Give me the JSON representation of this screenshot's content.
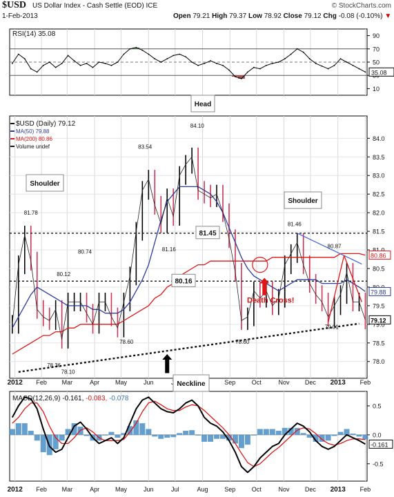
{
  "header": {
    "symbol": "$USD",
    "name": "US Dollar Index - Cash Settle (EOD) ICE",
    "brand": "© StockCharts.com",
    "date": "1-Feb-2013",
    "open_label": "Open",
    "open": "79.21",
    "high_label": "High",
    "high": "79.37",
    "low_label": "Low",
    "low": "78.92",
    "close_label": "Close",
    "close": "79.12",
    "chg_label": "Chg",
    "chg": "-0.08 (-0.10%)",
    "chg_marker": "▼",
    "colors": {
      "up": "#000000",
      "down": "#cc3355",
      "ma50": "#2a3a9e",
      "ma200": "#e01515"
    }
  },
  "rsi_panel": {
    "legend": "RSI(14) 35.08",
    "last_value_label": "35.08",
    "ticks": [
      "90",
      "70",
      "50",
      "30",
      "10"
    ],
    "tick_values": [
      90,
      70,
      50,
      30,
      10
    ],
    "ylim": [
      0,
      100
    ],
    "overbought": 70,
    "oversold": 30
  },
  "price_panel": {
    "legend": [
      "$USD (Daily) 79.12",
      "MA(50) 79.88",
      "MA(200) 80.86",
      "Volume undef"
    ],
    "y_ticks": [
      "84.0",
      "83.5",
      "83.0",
      "82.5",
      "82.0",
      "81.5",
      "81.0",
      "80.5",
      "80.0",
      "79.5",
      "79.0",
      "78.5",
      "78.0"
    ],
    "y_tick_values": [
      84.0,
      83.5,
      83.0,
      82.5,
      82.0,
      81.5,
      81.0,
      80.5,
      80.0,
      79.5,
      79.0,
      78.5,
      78.0
    ],
    "ylim": [
      77.55,
      84.6
    ],
    "ma200_label": "80.86",
    "ma50_label": "79.88",
    "close_label": "79.12",
    "price_labels": [
      "81.78",
      "78.36",
      "78.10",
      "80.12",
      "80.74",
      "78.60",
      "83.54",
      "81.16",
      "84.10",
      "78.60",
      "81.46",
      "80.87",
      "79.01"
    ],
    "level_labels": [
      "81.45",
      "80.16"
    ],
    "annotations": {
      "head": "Head",
      "shoulder_left": "Shoulder",
      "shoulder_right": "Shoulder",
      "neckline": "Neckline",
      "death_cross": "Death Cross!"
    }
  },
  "macd_panel": {
    "legend_prefix": "MACD(12,26,9)",
    "legend_macd": "-0.161,",
    "legend_signal": "-0.083,",
    "legend_hist": "-0.078",
    "ticks": [
      "0.5",
      "0.0",
      "-0.5"
    ],
    "tick_values": [
      0.5,
      0.0,
      -0.5
    ],
    "ylim": [
      -0.8,
      0.75
    ],
    "last_value_label": "-0.161"
  },
  "x_axis": {
    "labels": [
      "2012",
      "Feb",
      "Mar",
      "Apr",
      "May",
      "Jun",
      "Jul",
      "Aug",
      "Sep",
      "Oct",
      "Nov",
      "Dec",
      "2013",
      "Feb"
    ],
    "label_dates": [
      "2012-01-02",
      "2012-02-01",
      "2012-03-01",
      "2012-04-01",
      "2012-05-01",
      "2012-06-01",
      "2012-07-01",
      "2012-08-01",
      "2012-09-01",
      "2012-10-01",
      "2012-11-01",
      "2012-12-01",
      "2013-01-01",
      "2013-02-01"
    ]
  },
  "chart_data": [
    {
      "type": "line",
      "name": "RSI(14)",
      "ylim": [
        0,
        100
      ],
      "x": [
        "2011-12-30",
        "2012-01-06",
        "2012-01-13",
        "2012-01-20",
        "2012-01-27",
        "2012-02-03",
        "2012-02-10",
        "2012-02-17",
        "2012-02-24",
        "2012-03-02",
        "2012-03-09",
        "2012-03-16",
        "2012-03-23",
        "2012-03-30",
        "2012-04-06",
        "2012-04-13",
        "2012-04-20",
        "2012-04-27",
        "2012-05-04",
        "2012-05-11",
        "2012-05-18",
        "2012-05-25",
        "2012-06-01",
        "2012-06-08",
        "2012-06-15",
        "2012-06-22",
        "2012-06-29",
        "2012-07-06",
        "2012-07-13",
        "2012-07-20",
        "2012-07-27",
        "2012-08-03",
        "2012-08-10",
        "2012-08-17",
        "2012-08-24",
        "2012-08-31",
        "2012-09-07",
        "2012-09-14",
        "2012-09-21",
        "2012-09-28",
        "2012-10-05",
        "2012-10-12",
        "2012-10-19",
        "2012-10-26",
        "2012-11-02",
        "2012-11-09",
        "2012-11-16",
        "2012-11-23",
        "2012-11-30",
        "2012-12-07",
        "2012-12-14",
        "2012-12-21",
        "2012-12-28",
        "2013-01-04",
        "2013-01-11",
        "2013-01-18",
        "2013-01-25",
        "2013-02-01"
      ],
      "series": [
        {
          "name": "RSI(14)",
          "values": [
            48,
            62,
            55,
            40,
            35,
            45,
            50,
            42,
            48,
            60,
            52,
            45,
            48,
            42,
            50,
            48,
            45,
            50,
            62,
            70,
            72,
            68,
            62,
            55,
            50,
            55,
            60,
            62,
            58,
            50,
            45,
            48,
            52,
            48,
            45,
            38,
            28,
            25,
            35,
            42,
            40,
            45,
            48,
            50,
            55,
            62,
            70,
            65,
            55,
            48,
            44,
            40,
            45,
            55,
            50,
            45,
            40,
            35.08
          ]
        }
      ]
    },
    {
      "type": "ohlc",
      "title": "$USD (Daily) 79.12",
      "ylim": [
        77.55,
        84.6
      ],
      "x": [
        "2011-12-30",
        "2012-01-06",
        "2012-01-13",
        "2012-01-20",
        "2012-01-27",
        "2012-02-03",
        "2012-02-10",
        "2012-02-17",
        "2012-02-24",
        "2012-03-02",
        "2012-03-09",
        "2012-03-16",
        "2012-03-23",
        "2012-03-30",
        "2012-04-06",
        "2012-04-13",
        "2012-04-20",
        "2012-04-27",
        "2012-05-04",
        "2012-05-11",
        "2012-05-18",
        "2012-05-25",
        "2012-06-01",
        "2012-06-08",
        "2012-06-15",
        "2012-06-22",
        "2012-06-29",
        "2012-07-06",
        "2012-07-13",
        "2012-07-20",
        "2012-07-27",
        "2012-08-03",
        "2012-08-10",
        "2012-08-17",
        "2012-08-24",
        "2012-08-31",
        "2012-09-07",
        "2012-09-14",
        "2012-09-21",
        "2012-09-28",
        "2012-10-05",
        "2012-10-12",
        "2012-10-19",
        "2012-10-26",
        "2012-11-02",
        "2012-11-09",
        "2012-11-16",
        "2012-11-23",
        "2012-11-30",
        "2012-12-07",
        "2012-12-14",
        "2012-12-21",
        "2012-12-28",
        "2013-01-04",
        "2013-01-11",
        "2013-01-18",
        "2013-01-25",
        "2013-02-01"
      ],
      "series": [
        {
          "name": "$USD",
          "values": [
            79.0,
            80.6,
            81.4,
            80.7,
            79.4,
            79.2,
            79.1,
            79.4,
            78.6,
            79.6,
            79.6,
            79.6,
            79.3,
            79.0,
            79.6,
            79.6,
            79.2,
            78.9,
            79.6,
            80.3,
            81.5,
            82.6,
            82.9,
            82.2,
            81.7,
            82.4,
            81.9,
            83.0,
            83.3,
            83.5,
            82.6,
            82.5,
            82.4,
            82.5,
            82.0,
            81.3,
            80.4,
            79.1,
            79.2,
            79.9,
            79.7,
            79.9,
            79.5,
            79.7,
            80.6,
            80.9,
            81.2,
            80.6,
            80.1,
            79.8,
            79.6,
            79.2,
            79.5,
            79.8,
            80.4,
            79.6,
            79.6,
            79.12
          ]
        },
        {
          "name": "MA(50)",
          "values": [
            78.9,
            79.2,
            79.5,
            79.8,
            80.0,
            79.9,
            79.8,
            79.7,
            79.6,
            79.5,
            79.5,
            79.5,
            79.5,
            79.4,
            79.4,
            79.3,
            79.3,
            79.3,
            79.4,
            79.6,
            79.9,
            80.2,
            80.6,
            81.2,
            81.8,
            82.3,
            82.5,
            82.7,
            82.7,
            82.7,
            82.7,
            82.6,
            82.5,
            82.3,
            82.0,
            81.6,
            81.2,
            80.8,
            80.5,
            80.3,
            80.2,
            80.1,
            80.0,
            79.9,
            80.0,
            80.1,
            80.2,
            80.2,
            80.2,
            80.2,
            80.1,
            80.1,
            80.1,
            80.1,
            80.2,
            80.1,
            80.0,
            79.88
          ]
        },
        {
          "name": "MA(200)",
          "values": [
            78.2,
            78.3,
            78.4,
            78.5,
            78.6,
            78.7,
            78.7,
            78.8,
            78.8,
            78.9,
            78.9,
            79.0,
            79.0,
            79.0,
            79.0,
            79.0,
            79.0,
            79.0,
            79.1,
            79.2,
            79.3,
            79.4,
            79.5,
            79.7,
            79.8,
            80.0,
            80.1,
            80.3,
            80.4,
            80.5,
            80.6,
            80.6,
            80.7,
            80.7,
            80.7,
            80.7,
            80.7,
            80.7,
            80.7,
            80.7,
            80.7,
            80.7,
            80.8,
            80.8,
            80.8,
            80.8,
            80.8,
            80.8,
            80.8,
            80.8,
            80.8,
            80.8,
            80.8,
            80.9,
            80.9,
            80.9,
            80.9,
            80.86
          ]
        }
      ]
    },
    {
      "type": "line",
      "name": "MACD(12,26,9)",
      "ylim": [
        -0.8,
        0.75
      ],
      "x": [
        "2011-12-30",
        "2012-01-06",
        "2012-01-13",
        "2012-01-20",
        "2012-01-27",
        "2012-02-03",
        "2012-02-10",
        "2012-02-17",
        "2012-02-24",
        "2012-03-02",
        "2012-03-09",
        "2012-03-16",
        "2012-03-23",
        "2012-03-30",
        "2012-04-06",
        "2012-04-13",
        "2012-04-20",
        "2012-04-27",
        "2012-05-04",
        "2012-05-11",
        "2012-05-18",
        "2012-05-25",
        "2012-06-01",
        "2012-06-08",
        "2012-06-15",
        "2012-06-22",
        "2012-06-29",
        "2012-07-06",
        "2012-07-13",
        "2012-07-20",
        "2012-07-27",
        "2012-08-03",
        "2012-08-10",
        "2012-08-17",
        "2012-08-24",
        "2012-08-31",
        "2012-09-07",
        "2012-09-14",
        "2012-09-21",
        "2012-09-28",
        "2012-10-05",
        "2012-10-12",
        "2012-10-19",
        "2012-10-26",
        "2012-11-02",
        "2012-11-09",
        "2012-11-16",
        "2012-11-23",
        "2012-11-30",
        "2012-12-07",
        "2012-12-14",
        "2012-12-21",
        "2012-12-28",
        "2013-01-04",
        "2013-01-11",
        "2013-01-18",
        "2013-01-25",
        "2013-02-01"
      ],
      "series": [
        {
          "name": "MACD",
          "values": [
            0.3,
            0.5,
            0.65,
            0.62,
            0.45,
            0.1,
            -0.2,
            -0.3,
            -0.25,
            -0.05,
            0.15,
            0.22,
            0.1,
            -0.05,
            -0.15,
            -0.1,
            -0.05,
            -0.15,
            -0.05,
            0.2,
            0.45,
            0.6,
            0.65,
            0.55,
            0.45,
            0.4,
            0.38,
            0.45,
            0.55,
            0.6,
            0.5,
            0.3,
            0.2,
            0.15,
            0.05,
            -0.1,
            -0.3,
            -0.55,
            -0.65,
            -0.55,
            -0.4,
            -0.3,
            -0.2,
            -0.15,
            0.0,
            0.1,
            0.2,
            0.15,
            0.05,
            -0.1,
            -0.2,
            -0.25,
            -0.2,
            -0.1,
            0.0,
            -0.05,
            -0.1,
            -0.161
          ]
        },
        {
          "name": "Signal",
          "values": [
            0.2,
            0.3,
            0.45,
            0.55,
            0.55,
            0.4,
            0.15,
            -0.05,
            -0.15,
            -0.15,
            -0.05,
            0.08,
            0.12,
            0.05,
            -0.05,
            -0.1,
            -0.1,
            -0.1,
            -0.08,
            0.05,
            0.2,
            0.4,
            0.55,
            0.58,
            0.52,
            0.45,
            0.42,
            0.42,
            0.48,
            0.52,
            0.5,
            0.42,
            0.32,
            0.22,
            0.12,
            0.0,
            -0.15,
            -0.32,
            -0.48,
            -0.55,
            -0.5,
            -0.4,
            -0.3,
            -0.22,
            -0.12,
            -0.02,
            0.08,
            0.12,
            0.1,
            0.02,
            -0.08,
            -0.15,
            -0.18,
            -0.15,
            -0.1,
            -0.07,
            -0.07,
            -0.083
          ]
        }
      ]
    }
  ]
}
